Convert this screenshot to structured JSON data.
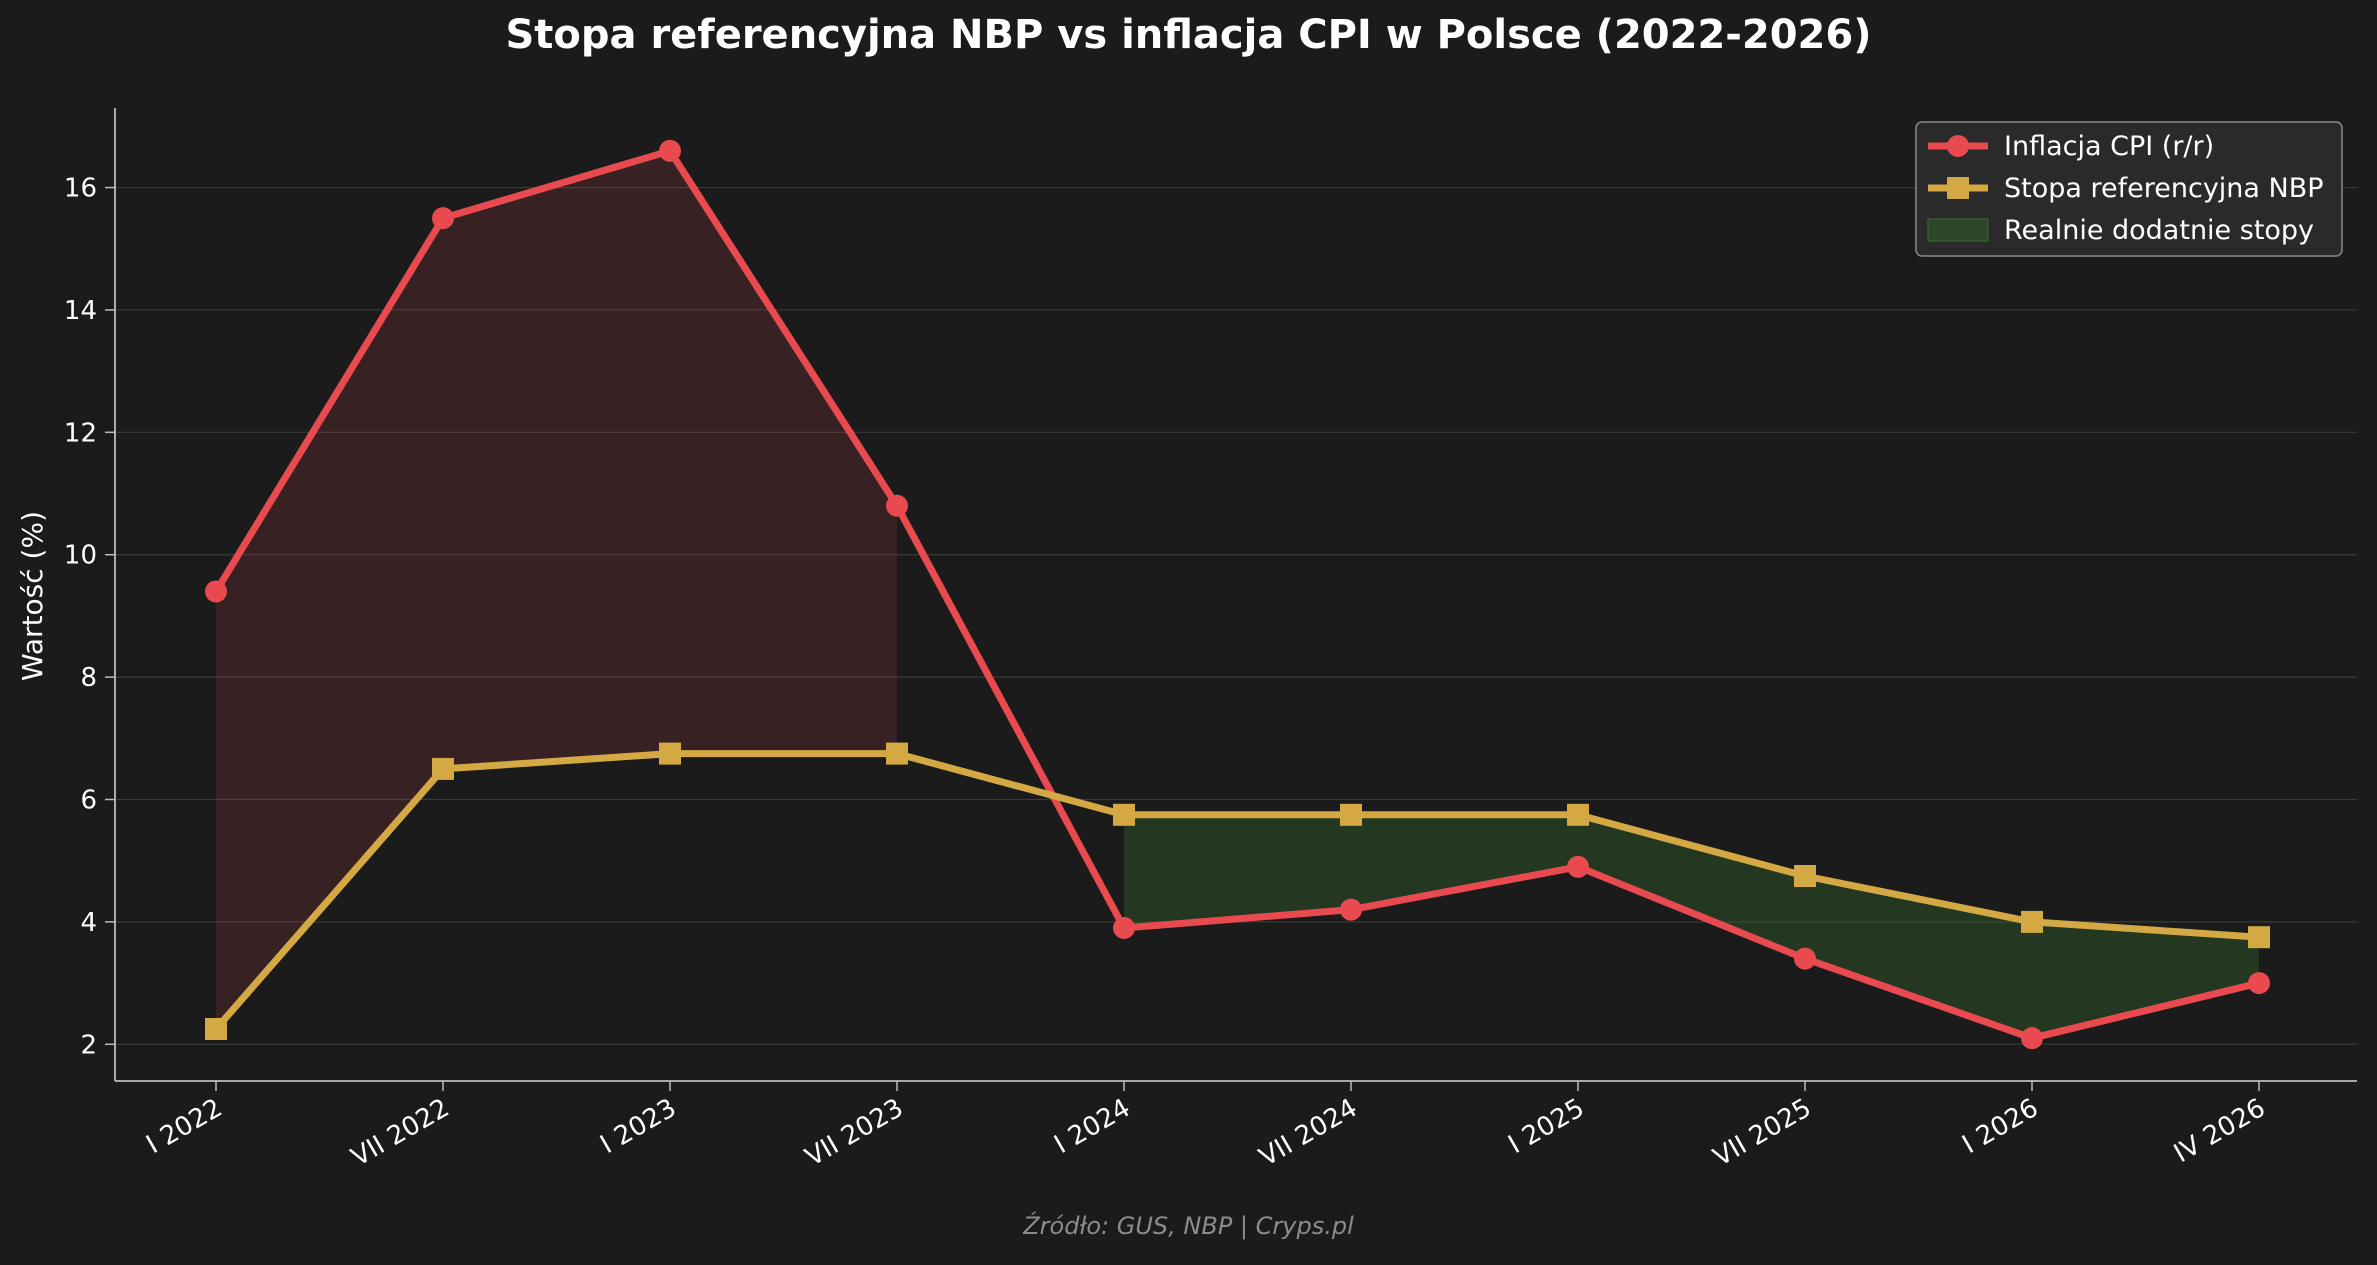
{
  "chart_data": {
    "type": "line",
    "title": "Stopa referencyjna NBP vs inflacja CPI w Polsce (2022-2026)",
    "xlabel": "",
    "ylabel": "Wartość (%)",
    "ylim": [
      1.4,
      17.3
    ],
    "yticks": [
      2,
      4,
      6,
      8,
      10,
      12,
      14,
      16
    ],
    "categories": [
      "I 2022",
      "VII 2022",
      "I 2023",
      "VII 2023",
      "I 2024",
      "VII 2024",
      "I 2025",
      "VII 2025",
      "I 2026",
      "IV 2026"
    ],
    "series": [
      {
        "name": "Inflacja CPI (r/r)",
        "color": "#e84a4f",
        "marker": "circle",
        "values": [
          9.4,
          15.5,
          16.6,
          10.8,
          3.9,
          4.2,
          4.9,
          3.4,
          2.1,
          3.0
        ]
      },
      {
        "name": "Stopa referencyjna NBP",
        "color": "#d4a843",
        "marker": "square",
        "values": [
          2.25,
          6.5,
          6.75,
          6.75,
          5.75,
          5.75,
          5.75,
          4.75,
          4.0,
          3.75
        ]
      }
    ],
    "fill_areas": [
      {
        "name": "",
        "color": "#e84a4f",
        "from_index": 0,
        "to_index": 3
      },
      {
        "name": "Realnie dodatnie stopy",
        "color": "#2e4a2a",
        "from_index": 4,
        "to_index": 9
      }
    ],
    "grid": "y",
    "legend": "top-right",
    "source": "Źródło: GUS, NBP | Cryps.pl"
  }
}
